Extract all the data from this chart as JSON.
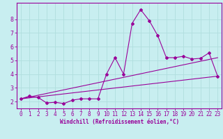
{
  "bg_color": "#c8eef0",
  "grid_color": "#b0dede",
  "line_color": "#990099",
  "xlabel": "Windchill (Refroidissement éolien,°C)",
  "xlim": [
    -0.5,
    23.5
  ],
  "ylim": [
    1.5,
    9.2
  ],
  "yticks": [
    2,
    3,
    4,
    5,
    6,
    7,
    8
  ],
  "xticks": [
    0,
    1,
    2,
    3,
    4,
    5,
    6,
    7,
    8,
    9,
    10,
    11,
    12,
    13,
    14,
    15,
    16,
    17,
    18,
    19,
    20,
    21,
    22,
    23
  ],
  "series1_x": [
    0,
    1,
    2,
    3,
    4,
    5,
    6,
    7,
    8,
    9,
    10,
    11,
    12,
    13,
    14,
    15,
    16,
    17,
    18,
    19,
    20,
    21,
    22,
    23
  ],
  "series1_y": [
    2.2,
    2.4,
    2.3,
    1.9,
    1.95,
    1.85,
    2.1,
    2.2,
    2.2,
    2.2,
    4.0,
    5.2,
    4.0,
    7.7,
    8.7,
    7.9,
    6.8,
    5.2,
    5.2,
    5.3,
    5.1,
    5.15,
    5.55,
    3.85
  ],
  "series2_x": [
    0,
    23
  ],
  "series2_y": [
    2.2,
    3.85
  ],
  "series3_x": [
    0,
    23
  ],
  "series3_y": [
    2.2,
    5.2
  ],
  "marker": "D",
  "markersize": 2.0,
  "linewidth": 0.8,
  "tick_fontsize": 5.5,
  "xlabel_fontsize": 5.5
}
